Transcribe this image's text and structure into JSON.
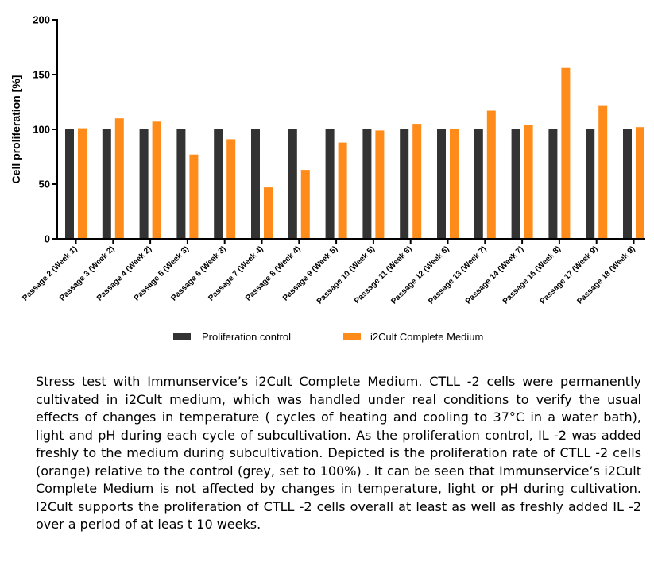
{
  "chart_data": {
    "type": "bar",
    "categories": [
      "Passage 2 (Week 1)",
      "Passage 3 (Week 2)",
      "Passage 4 (Week 2)",
      "Passage 5 (Week 3)",
      "Passage 6 (Week 3)",
      "Passage 7 (Week 4)",
      "Passage 8 (Week 4)",
      "Passage 9 (Week 5)",
      "Passage 10 (Week 5)",
      "Passage 11 (Week 6)",
      "Passage 12 (Week 6)",
      "Passage 13 (Week 7)",
      "Passage 14 (Week 7)",
      "Passage 16 (Week 8)",
      "Passage 17 (Week 9)",
      "Passage 18 (Week 9)"
    ],
    "series": [
      {
        "name": "Proliferation control",
        "color": "#333333",
        "values": [
          100,
          100,
          100,
          100,
          100,
          100,
          100,
          100,
          100,
          100,
          100,
          100,
          100,
          100,
          100,
          100
        ]
      },
      {
        "name": "i2Cult Complete Medium",
        "color": "#FF8C1A",
        "values": [
          101,
          110,
          107,
          77,
          91,
          47,
          63,
          88,
          99,
          105,
          100,
          117,
          104,
          156,
          122,
          102
        ]
      }
    ],
    "ylabel": "Cell proliferation [%]",
    "ylim": [
      0,
      200
    ],
    "yticks": [
      "0",
      "50",
      "100",
      "150",
      "200"
    ],
    "grid": false,
    "legend_position": "bottom"
  },
  "caption": "Stress test with Immunservice’s i2Cult Complete Medium. CTLL -2 cells were permanently cultivated in i2Cult medium, which was handled under real conditions to verify the usual effects of changes in temperature ( cycles of heating and cooling to 37°C in a water bath), light and pH during each cycle of subcultivation. As the proliferation control, IL -2 was added freshly to the medium during subcultivation. Depicted is the proliferation rate of CTLL -2 cells (orange) relative to the control (grey, set to 100%) . It can be seen that Immunservice’s i2Cult Complete Medium is not affected by changes in temperature, light or pH during cultivation. I2Cult supports the proliferation of CTLL -2 cells overall at least as well as freshly added IL -2 over a period of at leas t 10 weeks."
}
